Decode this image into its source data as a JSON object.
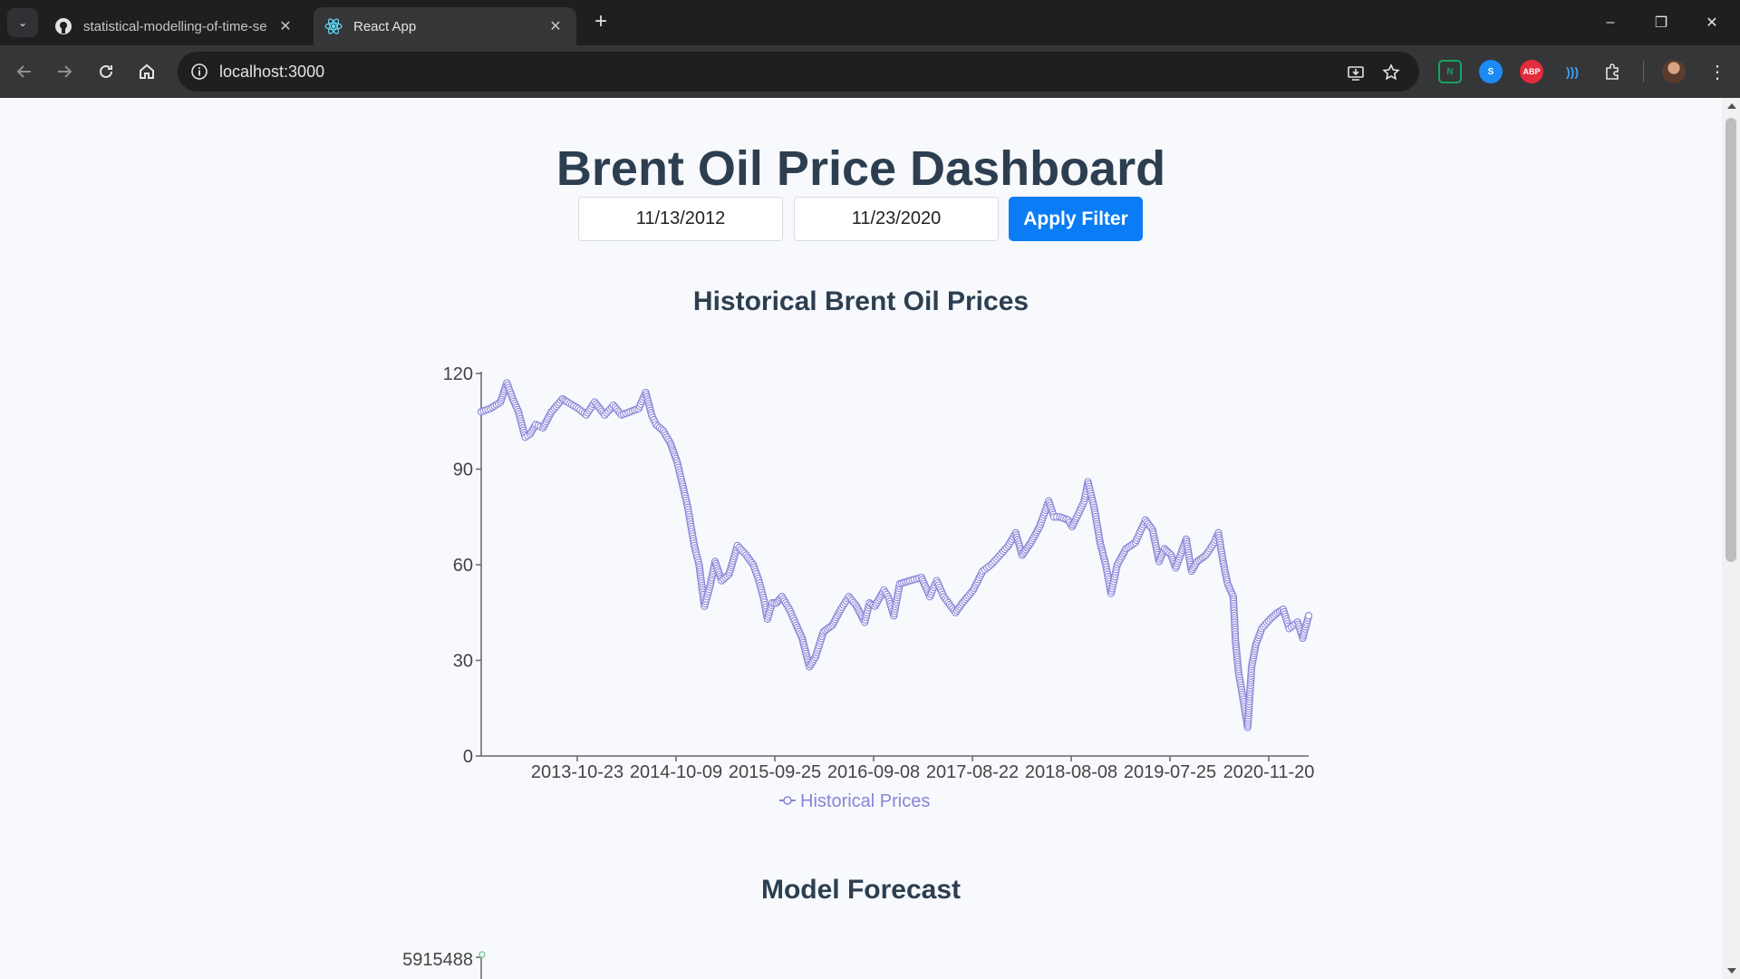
{
  "browser": {
    "tabs": [
      {
        "title": "statistical-modelling-of-time-se",
        "active": false,
        "favicon": "github-icon"
      },
      {
        "title": "React App",
        "active": true,
        "favicon": "react-icon"
      }
    ],
    "url": "localhost:3000",
    "extensions": [
      {
        "name": "notion-web-clipper-icon",
        "label": "N",
        "color": "#1aa260"
      },
      {
        "name": "shazam-icon",
        "label": "S",
        "color": "#1b8cf5"
      },
      {
        "name": "adblock-plus-icon",
        "label": "ABP",
        "color": "#e42b3b"
      },
      {
        "name": "read-aloud-icon",
        "label": ")))",
        "color": "#3aa3f5"
      }
    ]
  },
  "dashboard": {
    "title": "Brent Oil Price Dashboard",
    "start_date": "11/13/2012",
    "end_date": "11/23/2020",
    "apply_label": "Apply Filter"
  },
  "historical": {
    "title": "Historical Brent Oil Prices",
    "legend": "Historical Prices"
  },
  "forecast": {
    "title": "Model Forecast",
    "first_tick": "5915488"
  },
  "chart_data": {
    "type": "line",
    "title": "Historical Brent Oil Prices",
    "xlabel": "",
    "ylabel": "",
    "ylim": [
      0,
      120
    ],
    "yticks": [
      0,
      30,
      60,
      90,
      120
    ],
    "xticks": [
      "2013-10-23",
      "2014-10-09",
      "2015-09-25",
      "2016-09-08",
      "2017-08-22",
      "2018-08-08",
      "2019-07-25",
      "2020-11-20"
    ],
    "series": [
      {
        "name": "Historical Prices",
        "color": "#8884d8",
        "x_start": "2012-11-13",
        "x_end": "2020-11-23",
        "points": [
          [
            "2012-11-13",
            108
          ],
          [
            "2012-12-15",
            109
          ],
          [
            "2013-01-20",
            111
          ],
          [
            "2013-02-12",
            117
          ],
          [
            "2013-03-05",
            112
          ],
          [
            "2013-03-25",
            108
          ],
          [
            "2013-04-18",
            100
          ],
          [
            "2013-05-05",
            101
          ],
          [
            "2013-05-25",
            104
          ],
          [
            "2013-06-20",
            103
          ],
          [
            "2013-07-20",
            108
          ],
          [
            "2013-08-28",
            112
          ],
          [
            "2013-09-15",
            111
          ],
          [
            "2013-10-23",
            109
          ],
          [
            "2013-11-20",
            107
          ],
          [
            "2013-12-20",
            111
          ],
          [
            "2014-01-25",
            107
          ],
          [
            "2014-02-25",
            110
          ],
          [
            "2014-03-25",
            107
          ],
          [
            "2014-04-25",
            108
          ],
          [
            "2014-05-25",
            109
          ],
          [
            "2014-06-19",
            114
          ],
          [
            "2014-07-10",
            107
          ],
          [
            "2014-07-25",
            104
          ],
          [
            "2014-08-20",
            102
          ],
          [
            "2014-09-15",
            98
          ],
          [
            "2014-10-09",
            92
          ],
          [
            "2014-10-25",
            86
          ],
          [
            "2014-11-15",
            78
          ],
          [
            "2014-12-08",
            66
          ],
          [
            "2014-12-25",
            60
          ],
          [
            "2015-01-13",
            47
          ],
          [
            "2015-02-01",
            53
          ],
          [
            "2015-02-20",
            61
          ],
          [
            "2015-03-15",
            55
          ],
          [
            "2015-04-10",
            57
          ],
          [
            "2015-05-10",
            66
          ],
          [
            "2015-06-10",
            63
          ],
          [
            "2015-07-05",
            60
          ],
          [
            "2015-07-25",
            55
          ],
          [
            "2015-08-12",
            49
          ],
          [
            "2015-08-24",
            43
          ],
          [
            "2015-09-10",
            48
          ],
          [
            "2015-09-25",
            48
          ],
          [
            "2015-10-15",
            50
          ],
          [
            "2015-11-10",
            46
          ],
          [
            "2015-12-05",
            41
          ],
          [
            "2015-12-25",
            37
          ],
          [
            "2016-01-20",
            28
          ],
          [
            "2016-02-10",
            31
          ],
          [
            "2016-03-10",
            39
          ],
          [
            "2016-04-10",
            41
          ],
          [
            "2016-05-10",
            46
          ],
          [
            "2016-06-08",
            50
          ],
          [
            "2016-07-05",
            47
          ],
          [
            "2016-08-03",
            42
          ],
          [
            "2016-08-20",
            48
          ],
          [
            "2016-09-08",
            47
          ],
          [
            "2016-10-10",
            52
          ],
          [
            "2016-10-25",
            50
          ],
          [
            "2016-11-14",
            44
          ],
          [
            "2016-12-05",
            54
          ],
          [
            "2017-01-10",
            55
          ],
          [
            "2017-02-20",
            56
          ],
          [
            "2017-03-22",
            50
          ],
          [
            "2017-04-15",
            55
          ],
          [
            "2017-05-10",
            50
          ],
          [
            "2017-06-21",
            45
          ],
          [
            "2017-07-15",
            48
          ],
          [
            "2017-08-22",
            52
          ],
          [
            "2017-09-25",
            58
          ],
          [
            "2017-10-25",
            60
          ],
          [
            "2017-11-25",
            63
          ],
          [
            "2017-12-25",
            66
          ],
          [
            "2018-01-20",
            70
          ],
          [
            "2018-02-12",
            63
          ],
          [
            "2018-03-15",
            67
          ],
          [
            "2018-04-15",
            72
          ],
          [
            "2018-05-17",
            80
          ],
          [
            "2018-06-05",
            75
          ],
          [
            "2018-06-25",
            75
          ],
          [
            "2018-07-25",
            74
          ],
          [
            "2018-08-08",
            72
          ],
          [
            "2018-08-25",
            75
          ],
          [
            "2018-09-20",
            80
          ],
          [
            "2018-10-03",
            86
          ],
          [
            "2018-10-25",
            78
          ],
          [
            "2018-11-15",
            67
          ],
          [
            "2018-12-05",
            60
          ],
          [
            "2018-12-24",
            51
          ],
          [
            "2019-01-15",
            60
          ],
          [
            "2019-02-15",
            65
          ],
          [
            "2019-03-20",
            67
          ],
          [
            "2019-04-25",
            74
          ],
          [
            "2019-05-20",
            71
          ],
          [
            "2019-06-12",
            61
          ],
          [
            "2019-07-01",
            65
          ],
          [
            "2019-07-25",
            63
          ],
          [
            "2019-08-10",
            59
          ],
          [
            "2019-09-16",
            68
          ],
          [
            "2019-10-05",
            58
          ],
          [
            "2019-10-25",
            61
          ],
          [
            "2019-11-25",
            63
          ],
          [
            "2019-12-25",
            67
          ],
          [
            "2020-01-08",
            70
          ],
          [
            "2020-01-25",
            61
          ],
          [
            "2020-02-10",
            54
          ],
          [
            "2020-03-01",
            50
          ],
          [
            "2020-03-09",
            36
          ],
          [
            "2020-03-20",
            26
          ],
          [
            "2020-04-01",
            20
          ],
          [
            "2020-04-21",
            9
          ],
          [
            "2020-05-05",
            28
          ],
          [
            "2020-05-20",
            35
          ],
          [
            "2020-06-10",
            40
          ],
          [
            "2020-07-10",
            43
          ],
          [
            "2020-08-05",
            45
          ],
          [
            "2020-08-25",
            46
          ],
          [
            "2020-09-15",
            40
          ],
          [
            "2020-10-15",
            42
          ],
          [
            "2020-11-02",
            37
          ],
          [
            "2020-11-23",
            44
          ]
        ]
      }
    ]
  }
}
